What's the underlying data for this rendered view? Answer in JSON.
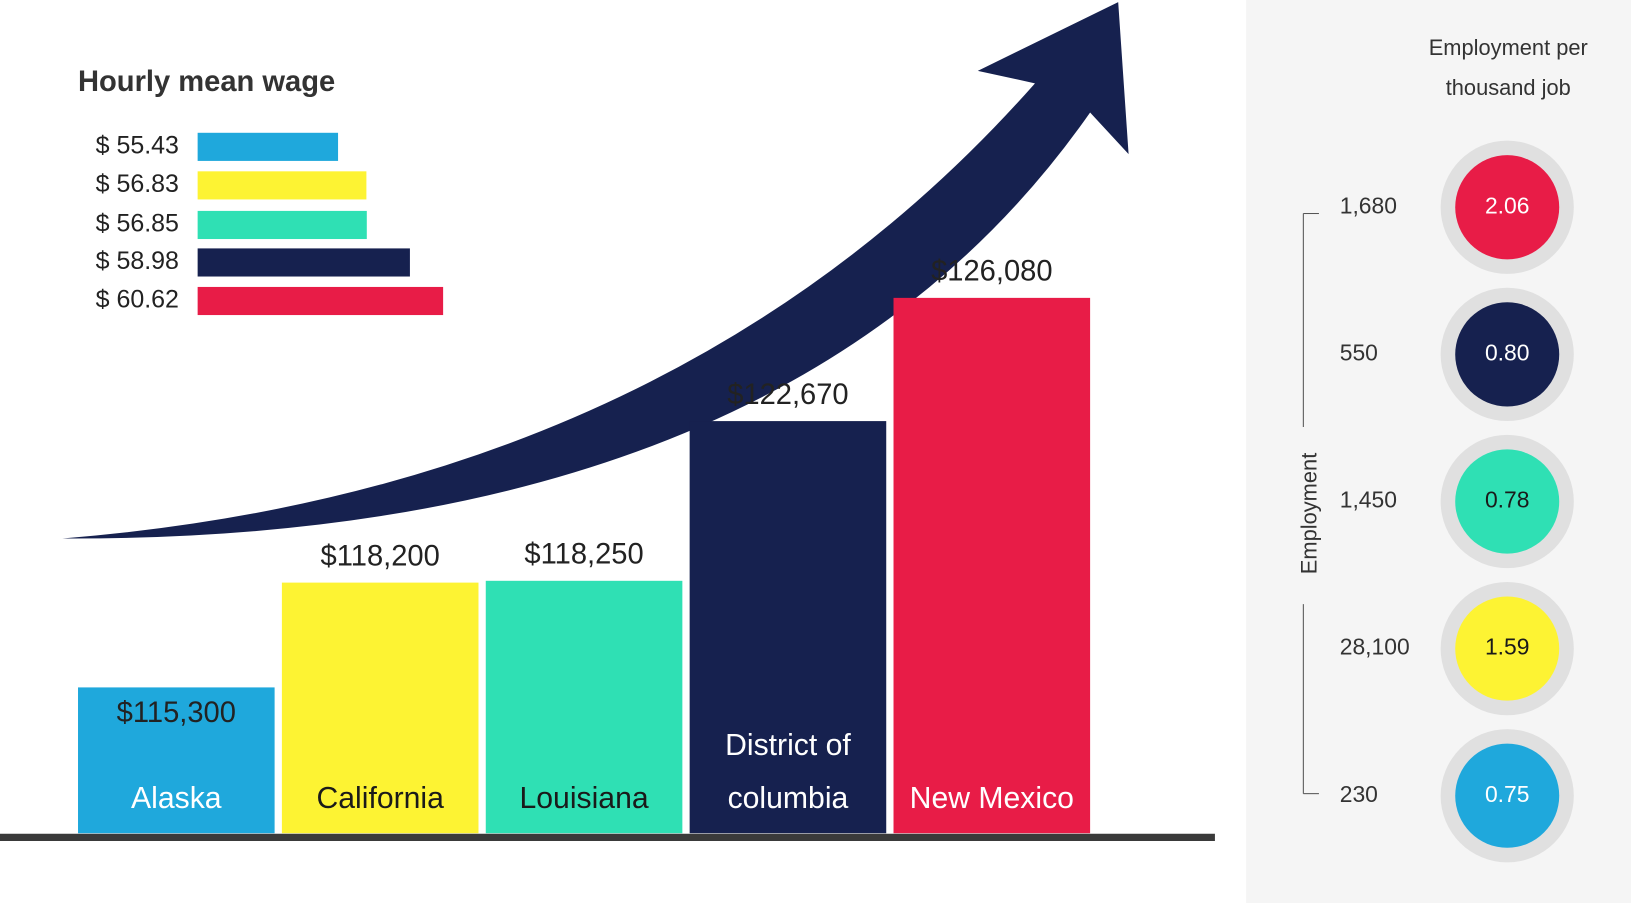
{
  "chart_data": [
    {
      "type": "bar",
      "categories": [
        "Alaska",
        "California",
        "Louisiana",
        "District of columbia",
        "New Mexico"
      ],
      "values": [
        115300,
        118200,
        118250,
        122670,
        126080
      ],
      "value_labels": [
        "$115,300",
        "$118,200",
        "$118,250",
        "$122,670",
        "$126,080"
      ],
      "colors": [
        "#1fa8dc",
        "#fdf333",
        "#2fe0b4",
        "#16214f",
        "#e81c47"
      ],
      "label_colors": [
        "#ffffff",
        "#1a1a1a",
        "#1a1a1a",
        "#ffffff",
        "#ffffff"
      ]
    },
    {
      "type": "hbar",
      "title": "Hourly mean wage",
      "values": [
        55.43,
        56.83,
        56.85,
        58.98,
        60.62
      ],
      "value_labels": [
        "$ 55.43",
        "$ 56.83",
        "$ 56.85",
        "$ 58.98",
        "$ 60.62"
      ],
      "colors": [
        "#1fa8dc",
        "#fdf333",
        "#2fe0b4",
        "#16214f",
        "#e81c47"
      ]
    },
    {
      "type": "bubble",
      "title": "Employment per thousand job",
      "axis_label": "Employment",
      "employment": [
        230,
        28100,
        1450,
        550,
        1680
      ],
      "employment_labels": [
        "230",
        "28,100",
        "1,450",
        "550",
        "1,680"
      ],
      "values": [
        0.75,
        1.59,
        0.78,
        0.8,
        2.06
      ],
      "value_labels": [
        "0.75",
        "1.59",
        "0.78",
        "0.80",
        "2.06"
      ],
      "colors": [
        "#1fa8dc",
        "#fdf333",
        "#2fe0b4",
        "#16214f",
        "#e81c47"
      ],
      "label_colors": [
        "#ffffff",
        "#1a1a1a",
        "#1a1a1a",
        "#ffffff",
        "#ffffff"
      ]
    }
  ]
}
